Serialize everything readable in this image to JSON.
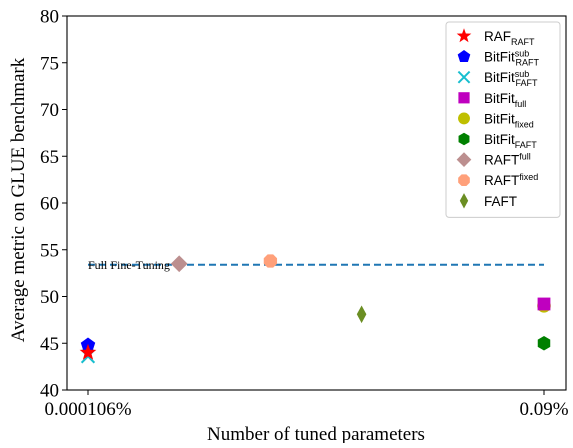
{
  "chart_data": {
    "type": "scatter",
    "xlabel": "Number of tuned parameters",
    "ylabel": "Average metric on GLUE benchmark",
    "x_tick_labels": [
      "0.000106%",
      "0.09%"
    ],
    "ylim": [
      40,
      80
    ],
    "y_ticks": [
      40,
      45,
      50,
      55,
      60,
      65,
      70,
      75,
      80
    ],
    "grid": false,
    "legend_position": "top-right",
    "reference_line": {
      "label": "Full Fine-Tuning",
      "y": 53.4,
      "color": "#1f77b4",
      "style": "dashed"
    },
    "series": [
      {
        "name": "RAF",
        "name_sub": "RAFT",
        "name_sup": "",
        "marker": "star",
        "color": "#ff0000",
        "points": [
          {
            "x": "0.000106%",
            "y": 44.0
          }
        ]
      },
      {
        "name": "BitFit",
        "name_sub": "RAFT",
        "name_sup": "sub",
        "marker": "pentagon",
        "color": "#0000ff",
        "points": [
          {
            "x": "0.000106%",
            "y": 44.8
          }
        ]
      },
      {
        "name": "BitFit",
        "name_sub": "FAFT",
        "name_sup": "sub",
        "marker": "x",
        "color": "#17becf",
        "points": [
          {
            "x": "0.000106%",
            "y": 43.6
          }
        ]
      },
      {
        "name": "BitFit",
        "name_sub": "full",
        "name_sup": "",
        "marker": "square",
        "color": "#bf00bf",
        "points": [
          {
            "x": "0.09%",
            "y": 49.2
          }
        ]
      },
      {
        "name": "BitFit",
        "name_sub": "fixed",
        "name_sup": "",
        "marker": "circle",
        "color": "#bfbf00",
        "points": [
          {
            "x": "0.09%",
            "y": 49.0
          }
        ]
      },
      {
        "name": "BitFit",
        "name_sub": "FAFT",
        "name_sup": "",
        "marker": "hexagon",
        "color": "#008000",
        "points": [
          {
            "x": "0.09%",
            "y": 45.0
          }
        ]
      },
      {
        "name": "RAFT",
        "name_sub": "",
        "name_sup": "full",
        "marker": "diamond",
        "color": "#bc8f8f",
        "points": [
          {
            "x": 0.2,
            "y": 53.5
          }
        ]
      },
      {
        "name": "RAFT",
        "name_sub": "",
        "name_sup": "fixed",
        "marker": "octagon",
        "color": "#ffa07a",
        "points": [
          {
            "x": 0.4,
            "y": 53.8
          }
        ]
      },
      {
        "name": "FAFT",
        "name_sub": "",
        "name_sup": "",
        "marker": "thin_diamond",
        "color": "#6b8e23",
        "points": [
          {
            "x": 0.6,
            "y": 48.1
          }
        ]
      }
    ]
  }
}
